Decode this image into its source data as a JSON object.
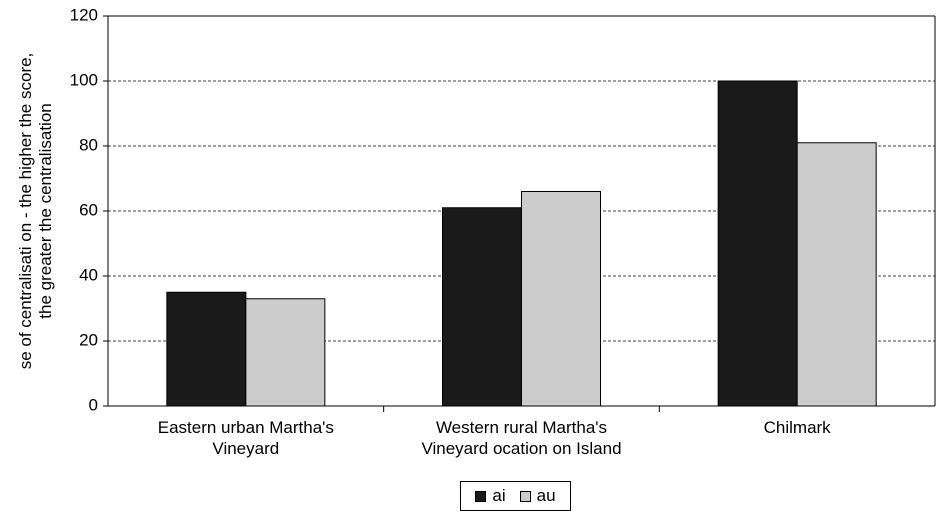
{
  "chart_data": {
    "type": "bar",
    "y_label": [
      "se of centralisati  on - the higher the score,",
      "the greater the centralisation"
    ],
    "categories": [
      "Eastern urban Martha's Vineyard",
      "Western rural Martha's Vineyard ocation on Island",
      "Chilmark"
    ],
    "series": [
      {
        "name": "ai",
        "color": "#1a1a1a",
        "values": [
          35,
          61,
          100
        ]
      },
      {
        "name": "au",
        "color": "#cccccc",
        "values": [
          33,
          66,
          81
        ]
      }
    ],
    "ylim": [
      0,
      120
    ],
    "yticks": [
      0,
      20,
      40,
      60,
      80,
      100,
      120
    ],
    "grid": true,
    "legend": "bottom"
  }
}
